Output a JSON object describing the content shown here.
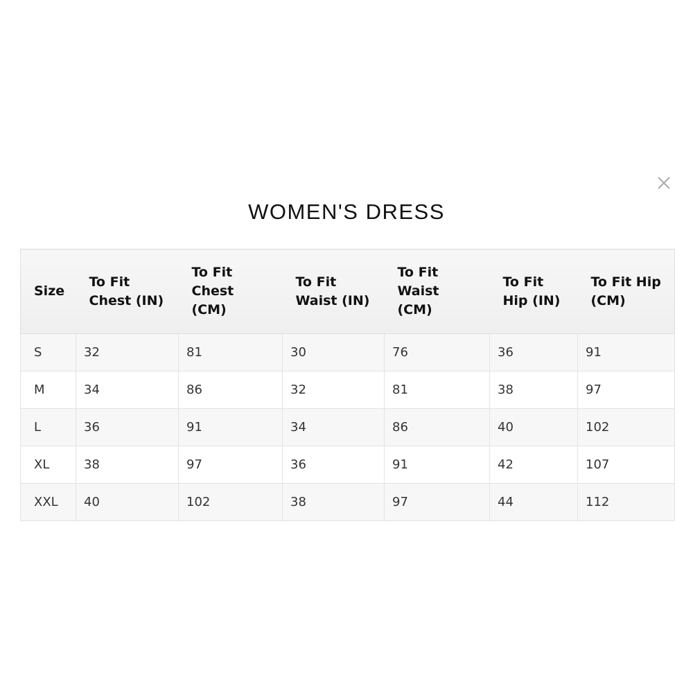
{
  "title": "WOMEN'S DRESS",
  "close_icon": "close-x-icon",
  "table": {
    "headers": [
      "Size",
      "To Fit Chest (IN)",
      "To Fit Chest (CM)",
      "To Fit Waist (IN)",
      "To Fit Waist (CM)",
      "To Fit Hip (IN)",
      "To Fit Hip (CM)"
    ],
    "rows": [
      [
        "S",
        "32",
        "81",
        "30",
        "76",
        "36",
        "91"
      ],
      [
        "M",
        "34",
        "86",
        "32",
        "81",
        "38",
        "97"
      ],
      [
        "L",
        "36",
        "91",
        "34",
        "86",
        "40",
        "102"
      ],
      [
        "XL",
        "38",
        "97",
        "36",
        "91",
        "42",
        "107"
      ],
      [
        "XXL",
        "40",
        "102",
        "38",
        "97",
        "44",
        "112"
      ]
    ]
  }
}
